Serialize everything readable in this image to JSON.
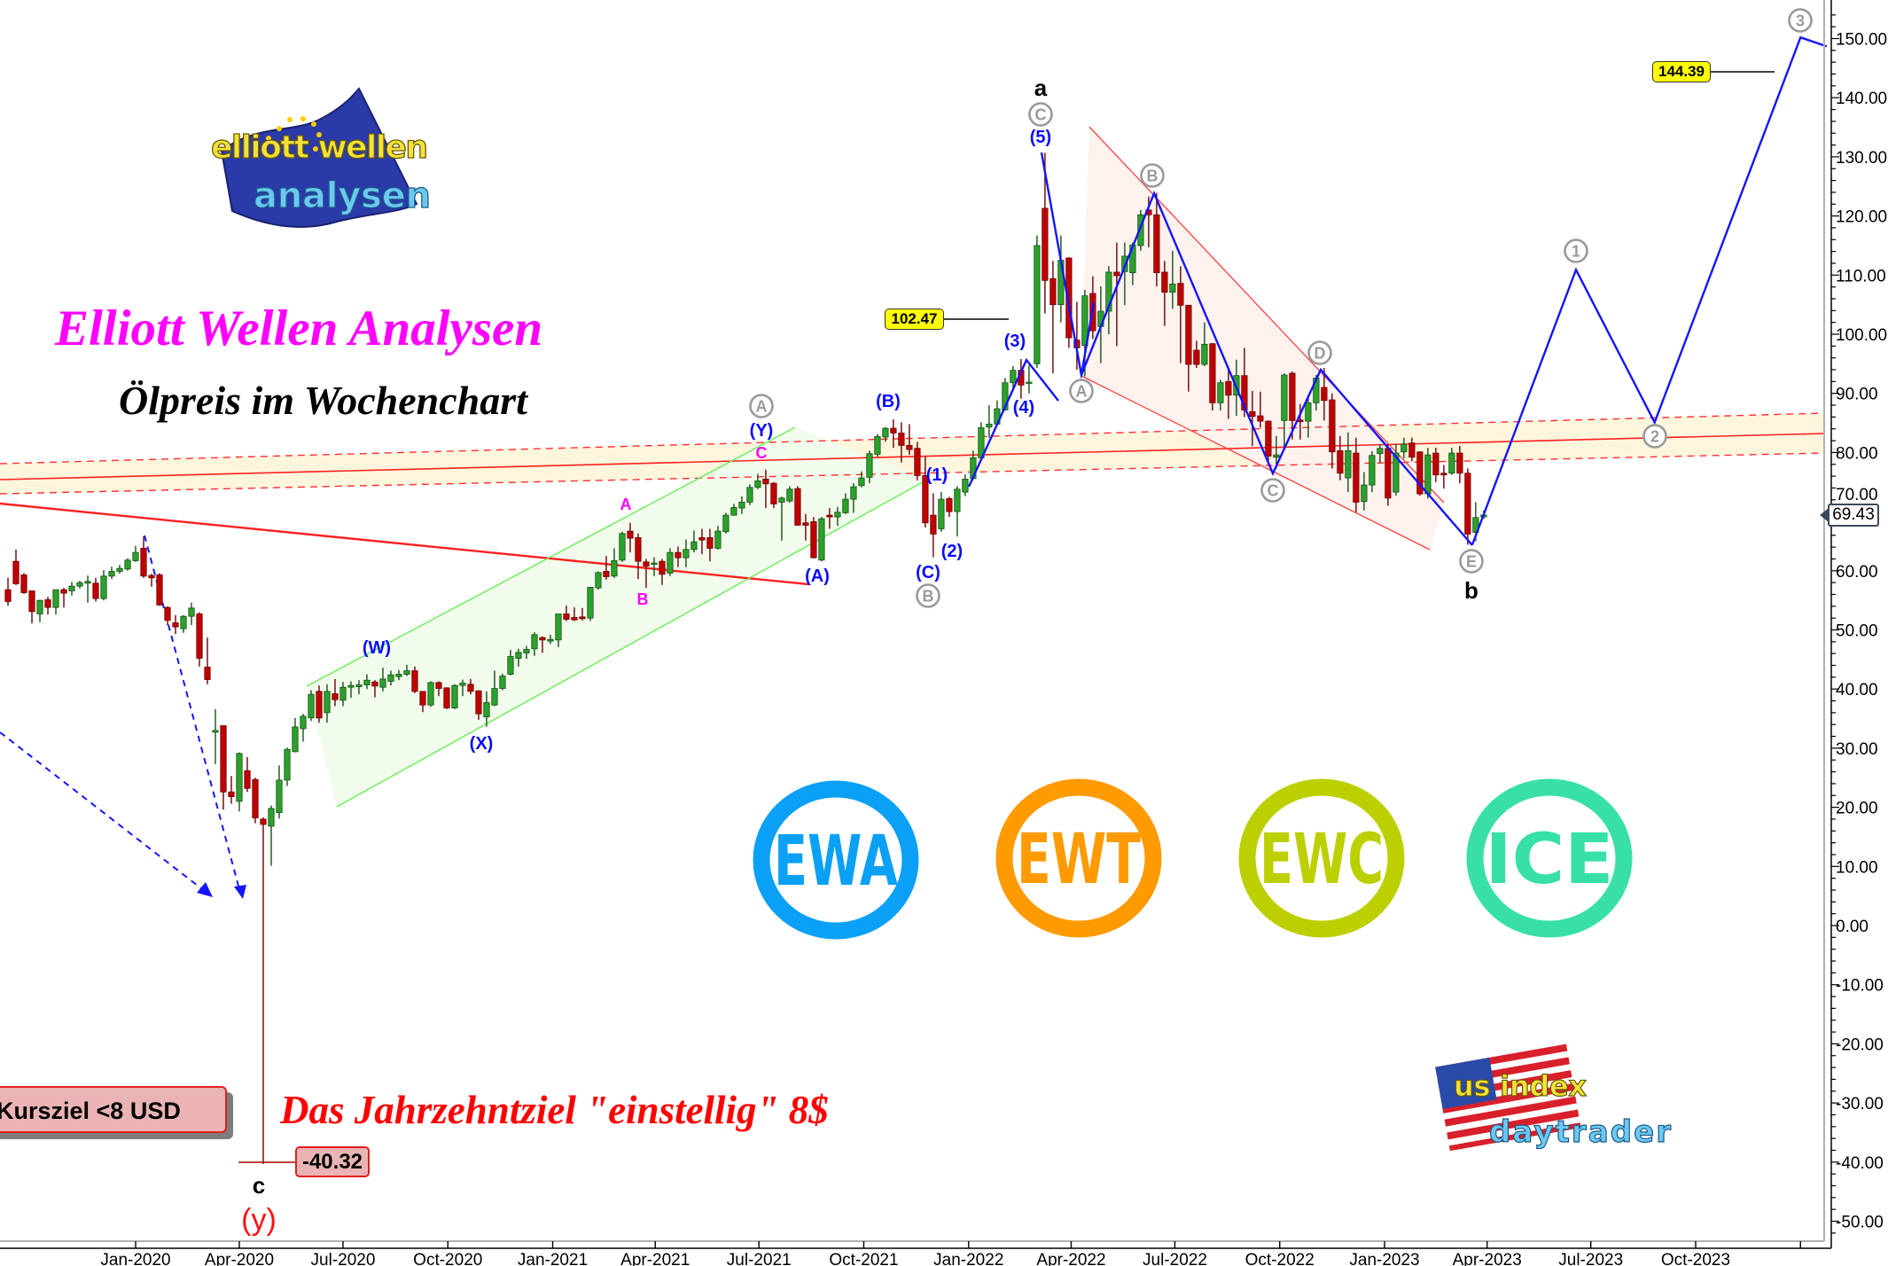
{
  "titles": {
    "main": "Elliott Wellen Analysen",
    "subtitle": "Ölpreis im Wochenchart",
    "target_text": "Das Jahrzehntziel \"einstellig\" 8$",
    "kursziel": "Kursziel <8 USD"
  },
  "logos": {
    "ewa_logo_top": "elliott wellen",
    "ewa_logo_bottom": "analysen",
    "usi_logo_top": "us index",
    "usi_logo_bottom": "daytrader",
    "badges": [
      {
        "text": "EWA",
        "color": "#0aa0f5"
      },
      {
        "text": "EWT",
        "color": "#ff9a00"
      },
      {
        "text": "EWC",
        "color": "#bcd000"
      },
      {
        "text": "ICE",
        "color": "#38e0a8"
      }
    ]
  },
  "price_boxes": {
    "low": "-40.32",
    "level_1": "102.47",
    "level_2": "144.39",
    "last_price": "69.43"
  },
  "annotations": {
    "a": "a",
    "b": "b",
    "c": "c",
    "y": "(y)",
    "w5": "(5)",
    "w3": "(3)",
    "w4": "(4)",
    "w1": "(1)",
    "w2": "(2)",
    "wA": "(A)",
    "wB": "(B)",
    "wC": "(C)",
    "wW": "(W)",
    "wX": "(X)",
    "wY": "(Y)",
    "mA": "A",
    "mB": "B",
    "mC": "C",
    "cA": "A",
    "cB": "B",
    "cC": "C",
    "cD": "D",
    "cE": "E",
    "n1": "1",
    "n2": "2",
    "n3": "3"
  },
  "colors": {
    "up": "#2ca02c",
    "down": "#c00000",
    "wave": "#1414ff",
    "support": "#ff2020",
    "support_band": "#fdf5dc",
    "channel": "#f2fcec",
    "wedge": "#fdf2ee",
    "circled": "#9a9a9a"
  },
  "chart_data": {
    "type": "candlestick",
    "interval": "weekly",
    "first_week": "2019-09-09",
    "ylim": [
      -50,
      150
    ],
    "y_ticks": [
      150,
      140,
      130,
      120,
      110,
      100,
      90,
      80,
      70,
      60,
      50,
      40,
      30,
      20,
      10,
      0,
      -10,
      -20,
      -30,
      -40,
      -50
    ],
    "x_ticks": [
      {
        "label": "Jan-2020",
        "date": "2020-01-01"
      },
      {
        "label": "Apr-2020",
        "date": "2020-04-01"
      },
      {
        "label": "Jul-2020",
        "date": "2020-07-01"
      },
      {
        "label": "Oct-2020",
        "date": "2020-10-01"
      },
      {
        "label": "Jan-2021",
        "date": "2021-01-01"
      },
      {
        "label": "Apr-2021",
        "date": "2021-04-01"
      },
      {
        "label": "Jul-2021",
        "date": "2021-07-01"
      },
      {
        "label": "Oct-2021",
        "date": "2021-10-01"
      },
      {
        "label": "Jan-2022",
        "date": "2022-01-01"
      },
      {
        "label": "Apr-2022",
        "date": "2022-04-01"
      },
      {
        "label": "Jul-2022",
        "date": "2022-07-01"
      },
      {
        "label": "Oct-2022",
        "date": "2022-10-01"
      },
      {
        "label": "Jan-2023",
        "date": "2023-01-01"
      },
      {
        "label": "Apr-2023",
        "date": "2023-04-01"
      },
      {
        "label": "Jul-2023",
        "date": "2023-07-01"
      },
      {
        "label": "Oct-2023",
        "date": "2023-10-01"
      },
      {
        "label": "",
        "date": "2024-01-01"
      }
    ],
    "ohlc": [
      [
        56.8,
        58.8,
        54.1,
        54.8
      ],
      [
        61.6,
        63.6,
        57.6,
        57.8
      ],
      [
        59.3,
        59.6,
        56.1,
        56.3
      ],
      [
        56.6,
        56.6,
        51.1,
        53.1
      ],
      [
        52.7,
        55.1,
        51.3,
        55.0
      ],
      [
        55.1,
        55.6,
        52.6,
        53.8
      ],
      [
        53.8,
        56.8,
        52.6,
        56.8
      ],
      [
        56.8,
        57.1,
        53.8,
        56.2
      ],
      [
        56.6,
        58.1,
        55.8,
        57.4
      ],
      [
        57.4,
        58.3,
        57.0,
        58.0
      ],
      [
        57.9,
        59.2,
        54.6,
        58.2
      ],
      [
        57.9,
        58.8,
        54.8,
        55.3
      ],
      [
        55.3,
        60.1,
        55.0,
        59.1
      ],
      [
        59.1,
        60.7,
        58.6,
        59.9
      ],
      [
        59.9,
        61.0,
        59.5,
        60.4
      ],
      [
        60.3,
        62.1,
        60.0,
        61.8
      ],
      [
        61.7,
        64.2,
        61.5,
        63.1
      ],
      [
        63.8,
        65.8,
        58.8,
        59.1
      ],
      [
        59.2,
        59.5,
        57.3,
        58.8
      ],
      [
        59.3,
        59.6,
        54.1,
        54.2
      ],
      [
        53.8,
        54.0,
        50.8,
        51.6
      ],
      [
        51.2,
        52.5,
        49.3,
        50.5
      ],
      [
        50.2,
        52.5,
        49.5,
        52.3
      ],
      [
        52.3,
        54.6,
        50.8,
        53.7
      ],
      [
        52.7,
        53.0,
        43.8,
        45.2
      ],
      [
        43.7,
        48.7,
        40.8,
        41.6
      ],
      [
        32.7,
        36.6,
        27.3,
        33.0
      ],
      [
        33.8,
        33.8,
        19.6,
        22.6
      ],
      [
        22.6,
        25.3,
        20.6,
        21.8
      ],
      [
        21.0,
        29.3,
        19.3,
        29.1
      ],
      [
        26.2,
        28.5,
        22.6,
        23.2
      ],
      [
        24.7,
        25.0,
        17.3,
        18.2
      ],
      [
        18.0,
        18.3,
        -40.32,
        17.1
      ],
      [
        16.8,
        20.3,
        10.1,
        19.8
      ],
      [
        19.1,
        27.1,
        18.1,
        24.6
      ],
      [
        24.6,
        30.1,
        23.6,
        29.8
      ],
      [
        29.4,
        35.1,
        29.3,
        33.6
      ],
      [
        33.3,
        35.8,
        31.1,
        35.4
      ],
      [
        35.1,
        39.8,
        34.6,
        39.1
      ],
      [
        39.6,
        40.6,
        34.3,
        35.1
      ],
      [
        36.0,
        40.8,
        34.3,
        39.6
      ],
      [
        39.2,
        41.7,
        37.1,
        38.2
      ],
      [
        38.1,
        41.2,
        37.1,
        40.3
      ],
      [
        40.3,
        41.3,
        38.5,
        40.6
      ],
      [
        40.4,
        41.5,
        39.1,
        40.7
      ],
      [
        40.7,
        42.5,
        40.0,
        41.5
      ],
      [
        41.2,
        41.5,
        38.6,
        40.5
      ],
      [
        40.3,
        43.6,
        39.6,
        41.7
      ],
      [
        41.3,
        43.1,
        40.6,
        42.4
      ],
      [
        42.1,
        43.2,
        41.5,
        42.5
      ],
      [
        42.5,
        44.1,
        42.2,
        43.1
      ],
      [
        43.1,
        43.8,
        39.3,
        39.6
      ],
      [
        39.6,
        39.6,
        36.1,
        37.3
      ],
      [
        37.3,
        41.3,
        37.0,
        41.1
      ],
      [
        41.1,
        41.3,
        38.8,
        40.1
      ],
      [
        40.2,
        40.3,
        36.6,
        36.8
      ],
      [
        36.8,
        40.8,
        36.6,
        40.6
      ],
      [
        40.6,
        41.6,
        38.8,
        41.0
      ],
      [
        40.8,
        41.7,
        39.1,
        39.6
      ],
      [
        39.7,
        39.8,
        34.8,
        35.8
      ],
      [
        35.3,
        39.6,
        33.6,
        37.7
      ],
      [
        37.3,
        43.1,
        37.1,
        40.1
      ],
      [
        40.1,
        42.6,
        39.8,
        42.2
      ],
      [
        42.5,
        46.6,
        42.3,
        45.5
      ],
      [
        45.2,
        46.8,
        43.8,
        46.2
      ],
      [
        46.1,
        47.3,
        45.1,
        46.7
      ],
      [
        46.8,
        49.6,
        45.6,
        49.2
      ],
      [
        48.7,
        48.9,
        46.1,
        48.3
      ],
      [
        48.1,
        49.2,
        47.6,
        48.4
      ],
      [
        48.3,
        52.7,
        47.1,
        52.7
      ],
      [
        52.7,
        54.1,
        51.5,
        51.8
      ],
      [
        52.1,
        53.8,
        51.5,
        51.7
      ],
      [
        52.2,
        53.7,
        51.6,
        51.9
      ],
      [
        52.0,
        57.3,
        51.5,
        57.2
      ],
      [
        57.1,
        59.9,
        56.8,
        59.7
      ],
      [
        59.9,
        62.5,
        58.5,
        59.0
      ],
      [
        59.1,
        63.8,
        58.8,
        61.7
      ],
      [
        61.8,
        66.6,
        61.5,
        66.3
      ],
      [
        66.7,
        68.1,
        63.1,
        65.5
      ],
      [
        65.6,
        66.3,
        58.6,
        61.6
      ],
      [
        61.5,
        62.0,
        57.1,
        60.8
      ],
      [
        61.1,
        62.3,
        59.1,
        61.3
      ],
      [
        61.6,
        62.0,
        57.6,
        59.4
      ],
      [
        59.6,
        63.8,
        59.1,
        63.1
      ],
      [
        63.1,
        64.1,
        60.6,
        62.2
      ],
      [
        62.2,
        65.3,
        60.6,
        63.6
      ],
      [
        63.6,
        66.8,
        63.1,
        64.9
      ],
      [
        65.6,
        67.1,
        62.8,
        65.2
      ],
      [
        65.6,
        67.1,
        61.6,
        63.8
      ],
      [
        63.8,
        67.6,
        63.6,
        66.7
      ],
      [
        66.6,
        69.8,
        66.3,
        69.4
      ],
      [
        69.4,
        71.3,
        69.3,
        70.7
      ],
      [
        70.6,
        72.6,
        69.6,
        71.6
      ],
      [
        71.6,
        74.6,
        71.1,
        74.1
      ],
      [
        74.1,
        76.4,
        73.8,
        75.2
      ],
      [
        75.5,
        77.1,
        70.6,
        74.7
      ],
      [
        74.8,
        75.0,
        70.6,
        71.3
      ],
      [
        71.6,
        72.5,
        65.1,
        72.3
      ],
      [
        71.8,
        74.3,
        71.5,
        73.8
      ],
      [
        73.9,
        74.3,
        67.6,
        67.7
      ],
      [
        68.1,
        69.6,
        65.1,
        67.7
      ],
      [
        68.3,
        69.1,
        62.1,
        62.2
      ],
      [
        61.8,
        69.1,
        61.6,
        68.8
      ],
      [
        69.4,
        70.6,
        67.1,
        69.1
      ],
      [
        69.1,
        70.8,
        67.6,
        69.9
      ],
      [
        69.8,
        73.1,
        69.6,
        72.1
      ],
      [
        72.1,
        74.8,
        69.8,
        74.2
      ],
      [
        74.4,
        76.8,
        74.1,
        75.7
      ],
      [
        75.8,
        80.3,
        74.8,
        79.8
      ],
      [
        79.7,
        83.1,
        79.3,
        82.7
      ],
      [
        82.6,
        84.3,
        81.8,
        84.1
      ],
      [
        84.1,
        85.6,
        80.8,
        83.3
      ],
      [
        83.3,
        85.1,
        78.3,
        81.2
      ],
      [
        81.2,
        84.8,
        79.6,
        80.5
      ],
      [
        80.7,
        81.8,
        75.3,
        76.1
      ],
      [
        76.1,
        79.3,
        67.3,
        68.1
      ],
      [
        69.4,
        73.1,
        62.3,
        66.2
      ],
      [
        67.1,
        73.3,
        66.6,
        72.1
      ],
      [
        72.2,
        72.5,
        69.1,
        70.0
      ],
      [
        70.0,
        74.3,
        65.8,
        73.8
      ],
      [
        73.3,
        76.3,
        72.6,
        75.5
      ],
      [
        75.6,
        80.3,
        75.3,
        79.1
      ],
      [
        79.1,
        85.1,
        78.5,
        84.2
      ],
      [
        84.3,
        88.0,
        82.5,
        84.8
      ],
      [
        84.8,
        88.8,
        84.5,
        87.4
      ],
      [
        87.2,
        92.6,
        87.1,
        91.8
      ],
      [
        91.8,
        94.6,
        90.5,
        93.9
      ],
      [
        93.9,
        95.8,
        89.1,
        91.4
      ],
      [
        91.7,
        94.7,
        90.0,
        91.9
      ],
      [
        95.0,
        116.7,
        94.3,
        115.0
      ],
      [
        121.3,
        130.7,
        103.5,
        109.1
      ],
      [
        109.4,
        112.4,
        93.4,
        105.0
      ],
      [
        105.0,
        116.7,
        102.0,
        112.5
      ],
      [
        112.9,
        113.0,
        97.7,
        99.4
      ],
      [
        99.0,
        105.5,
        94.0,
        97.7
      ],
      [
        98.1,
        107.5,
        92.9,
        106.5
      ],
      [
        106.9,
        109.8,
        99.2,
        100.6
      ],
      [
        101.3,
        108.1,
        95.1,
        103.9
      ],
      [
        103.9,
        111.5,
        100.0,
        110.5
      ],
      [
        110.5,
        115.5,
        98.0,
        109.9
      ],
      [
        110.6,
        115.5,
        104.9,
        113.2
      ],
      [
        110.4,
        115.5,
        108.3,
        115.1
      ],
      [
        115.0,
        121.0,
        114.1,
        120.2
      ],
      [
        121.0,
        123.3,
        114.7,
        120.2
      ],
      [
        120.2,
        123.9,
        108.1,
        110.4
      ],
      [
        110.5,
        112.4,
        101.4,
        107.1
      ],
      [
        107.1,
        114.1,
        104.3,
        108.5
      ],
      [
        108.6,
        111.5,
        95.1,
        104.9
      ],
      [
        104.9,
        104.9,
        90.3,
        94.9
      ],
      [
        97.3,
        98.9,
        94.3,
        94.9
      ],
      [
        94.9,
        102.0,
        94.6,
        98.3
      ],
      [
        98.4,
        98.5,
        87.1,
        88.4
      ],
      [
        88.4,
        92.3,
        87.1,
        91.8
      ],
      [
        92.0,
        94.0,
        85.7,
        89.7
      ],
      [
        89.7,
        95.7,
        86.2,
        93.0
      ],
      [
        93.0,
        97.7,
        86.0,
        87.2
      ],
      [
        86.9,
        90.4,
        81.1,
        86.1
      ],
      [
        86.2,
        90.3,
        84.2,
        85.3
      ],
      [
        85.3,
        85.4,
        77.9,
        79.4
      ],
      [
        79.2,
        82.8,
        77.3,
        79.6
      ],
      [
        85.4,
        93.4,
        80.8,
        93.1
      ],
      [
        93.4,
        93.7,
        82.2,
        85.4
      ],
      [
        85.5,
        88.2,
        82.2,
        85.2
      ],
      [
        85.3,
        89.7,
        82.5,
        88.4
      ],
      [
        88.4,
        93.1,
        87.1,
        92.6
      ],
      [
        91.0,
        94.3,
        85.4,
        88.8
      ],
      [
        88.9,
        90.0,
        77.3,
        80.1
      ],
      [
        80.3,
        82.8,
        75.3,
        76.5
      ],
      [
        75.7,
        83.4,
        73.3,
        80.3
      ],
      [
        79.9,
        82.5,
        69.9,
        71.6
      ],
      [
        71.7,
        76.7,
        70.2,
        74.5
      ],
      [
        74.5,
        80.2,
        73.3,
        79.5
      ],
      [
        79.8,
        81.4,
        78.2,
        80.7
      ],
      [
        80.7,
        81.4,
        71.0,
        72.3
      ],
      [
        73.3,
        81.4,
        72.7,
        79.9
      ],
      [
        80.1,
        82.5,
        79.0,
        81.4
      ],
      [
        81.6,
        82.5,
        78.5,
        79.2
      ],
      [
        80.1,
        80.2,
        72.7,
        73.0
      ],
      [
        73.0,
        80.8,
        72.2,
        79.6
      ],
      [
        79.9,
        80.8,
        75.0,
        76.2
      ],
      [
        76.5,
        77.9,
        73.9,
        76.2
      ],
      [
        76.5,
        80.8,
        76.2,
        79.9
      ],
      [
        79.9,
        81.1,
        74.8,
        76.5
      ],
      [
        76.5,
        77.3,
        64.4,
        66.2
      ],
      [
        66.5,
        71.6,
        65.0,
        69.0
      ],
      [
        69.1,
        70.2,
        68.8,
        69.43
      ]
    ],
    "forecast": [
      {
        "date": "2023-03-19",
        "price": 64.4
      },
      {
        "date": "2023-06-18",
        "price": 110.9
      },
      {
        "date": "2023-08-26",
        "price": 85.1
      },
      {
        "date": "2024-01-01",
        "price": 150.2
      },
      {
        "date": "2024-01-24",
        "price": 148.7
      }
    ]
  }
}
